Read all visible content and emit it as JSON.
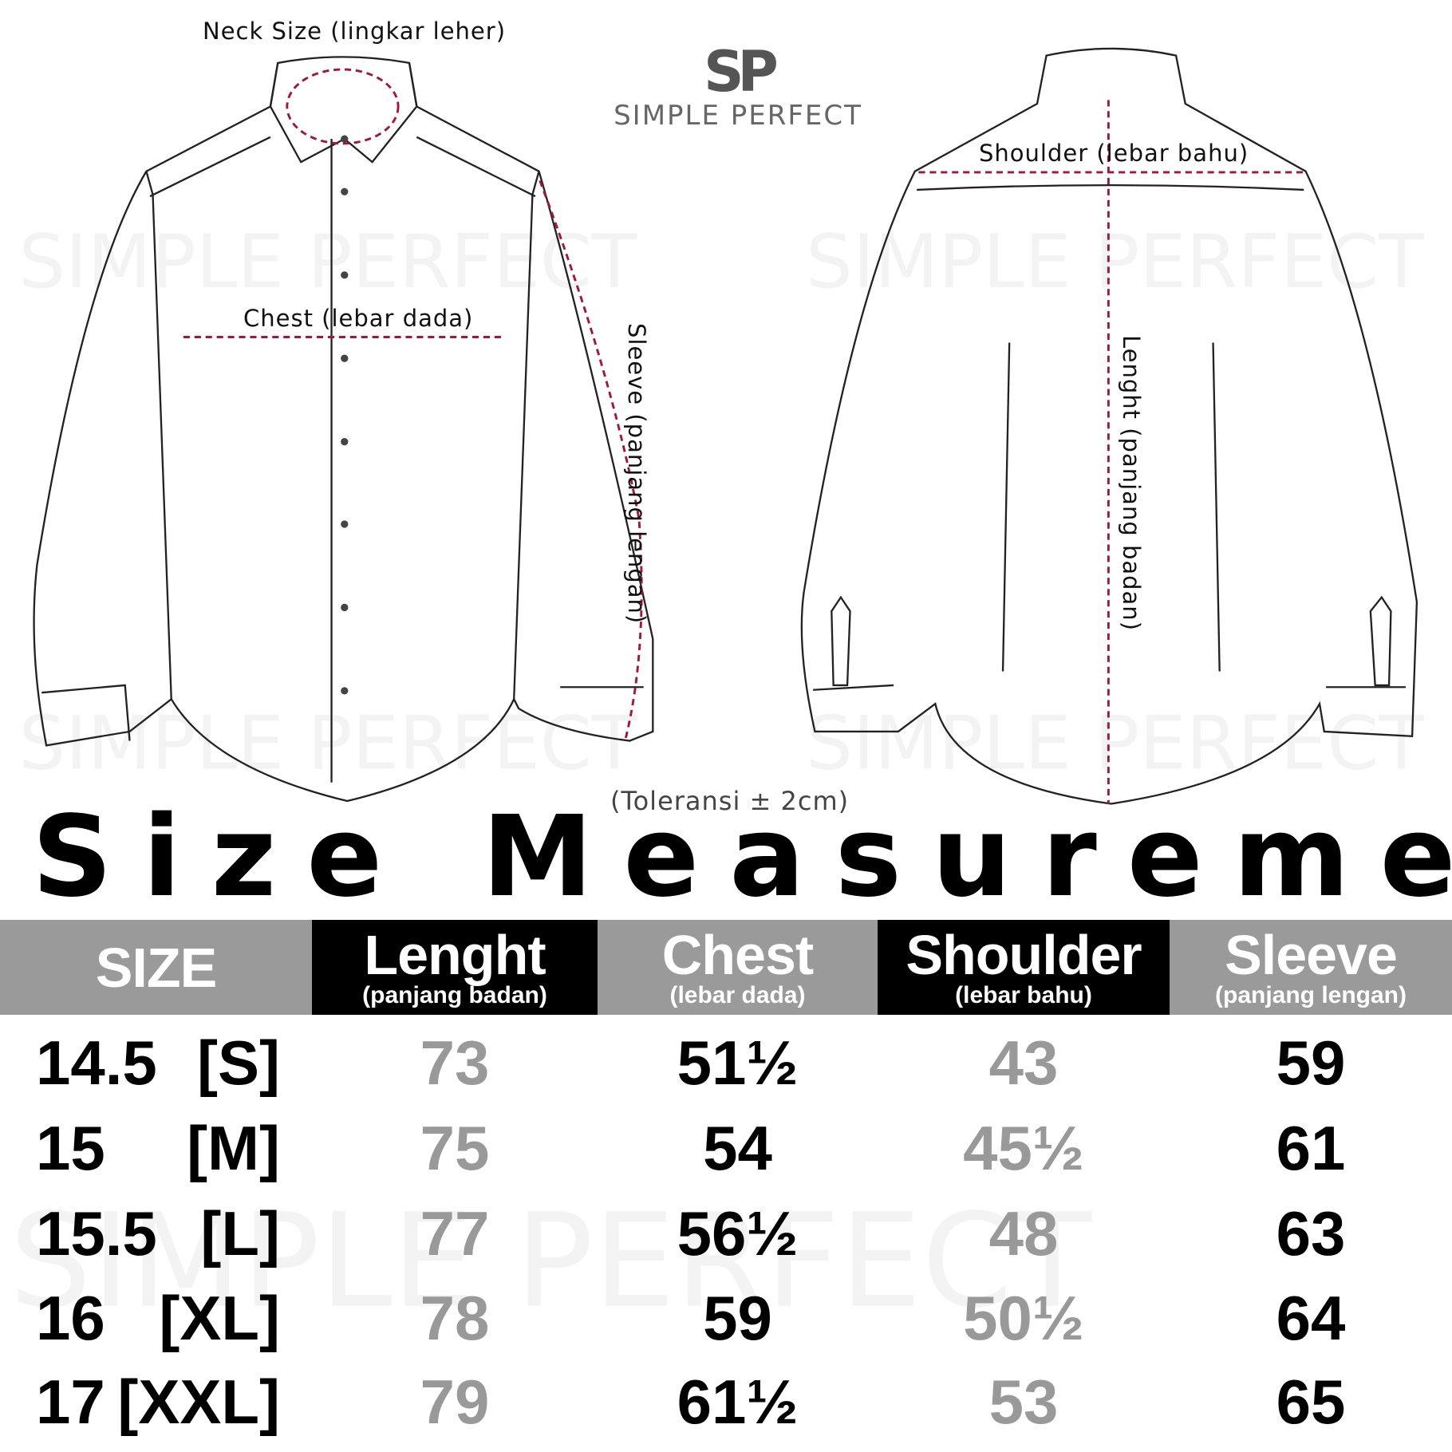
{
  "brand": {
    "mark": "SP",
    "name": "SIMPLE PERFECT"
  },
  "labels": {
    "neck": "Neck Size (lingkar leher)",
    "chest": "Chest (lebar dada)",
    "sleeve": "Sleeve (panjang lengan)",
    "shoulder": "Shoulder (lebar bahu)",
    "length": "Lenght (panjang badan)",
    "tolerance": "(Toleransi ± 2cm)"
  },
  "title": "Size Measurements",
  "colors": {
    "measure_line": "#a0173d",
    "header_gray": "#9a9a9a",
    "header_black": "#000000",
    "value_gray": "#999999"
  },
  "table": {
    "headers": [
      {
        "main": "SIZE",
        "sub": ""
      },
      {
        "main": "Lenght",
        "sub": "(panjang badan)"
      },
      {
        "main": "Chest",
        "sub": "(lebar dada)"
      },
      {
        "main": "Shoulder",
        "sub": "(lebar bahu)"
      },
      {
        "main": "Sleeve",
        "sub": "(panjang lengan)"
      }
    ],
    "rows": [
      {
        "neck": "14.5",
        "size": "[S]",
        "length": "73",
        "chest": "51½",
        "shoulder": "43",
        "sleeve": "59"
      },
      {
        "neck": "15",
        "size": "[M]",
        "length": "75",
        "chest": "54",
        "shoulder": "45½",
        "sleeve": "61"
      },
      {
        "neck": "15.5",
        "size": "[L]",
        "length": "77",
        "chest": "56½",
        "shoulder": "48",
        "sleeve": "63"
      },
      {
        "neck": "16",
        "size": "[XL]",
        "length": "78",
        "chest": "59",
        "shoulder": "50½",
        "sleeve": "64"
      },
      {
        "neck": "17",
        "size": "[XXL]",
        "length": "79",
        "chest": "61½",
        "shoulder": "53",
        "sleeve": "65"
      }
    ]
  }
}
